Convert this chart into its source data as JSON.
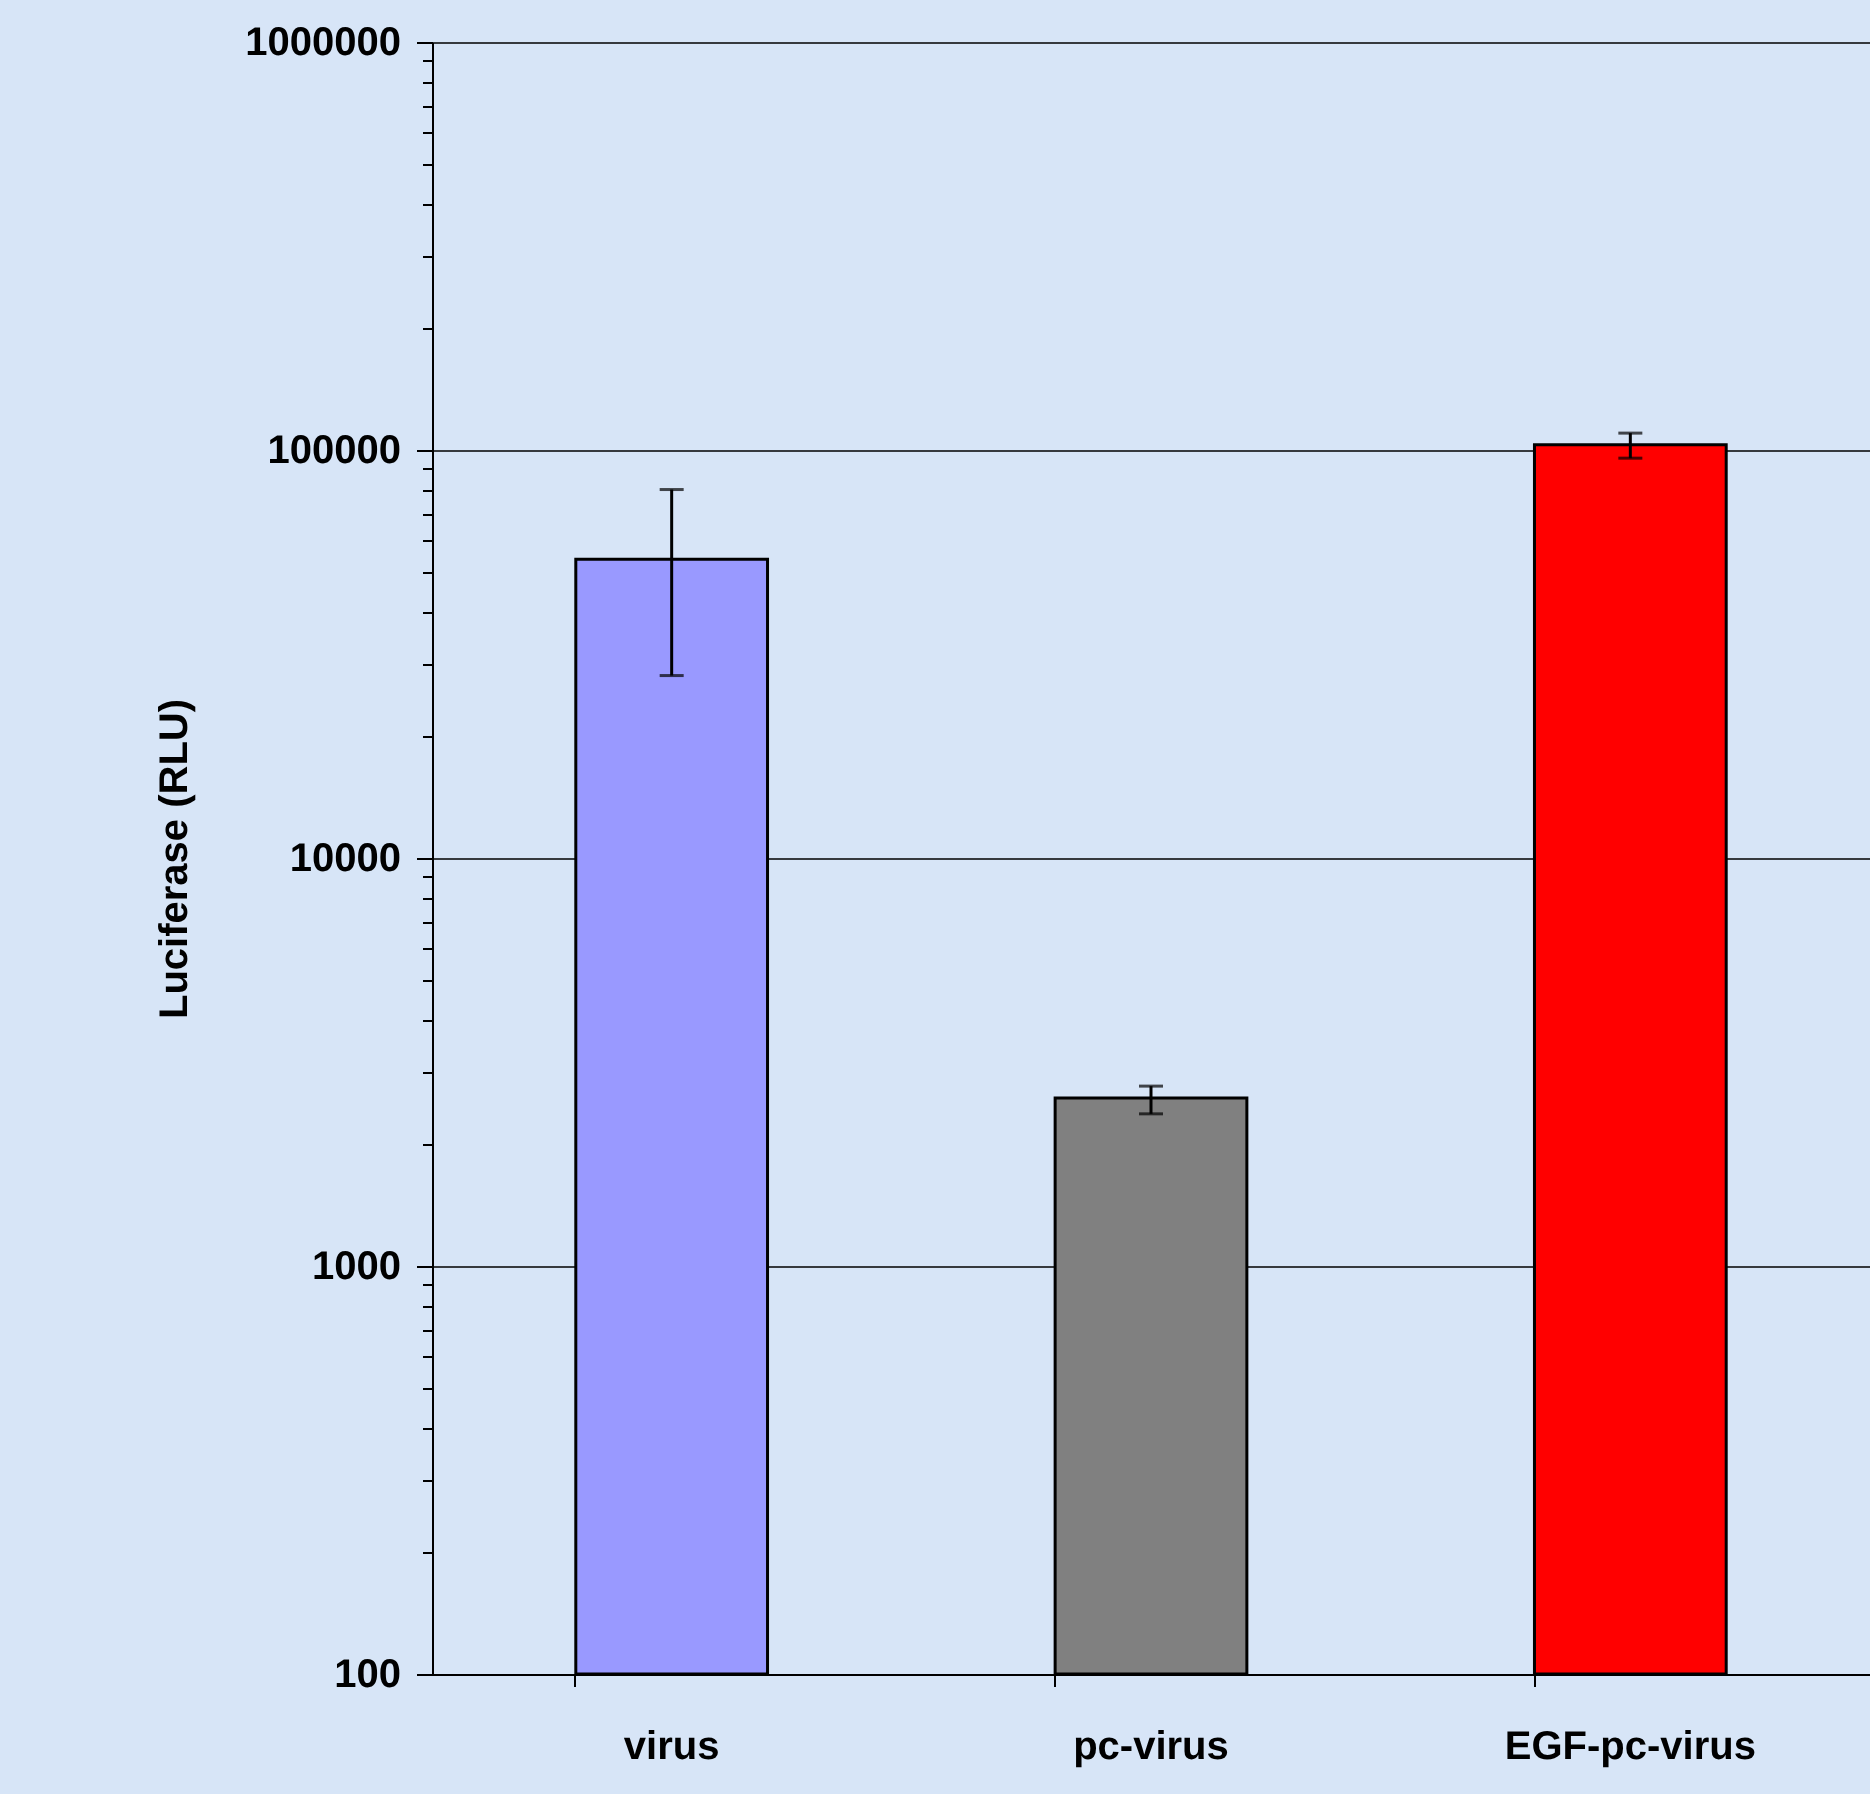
{
  "chart_data": {
    "type": "bar",
    "ylabel": "Luciferase (RLU)",
    "categories": [
      "virus",
      "pc-virus",
      "EGF-pc-virus"
    ],
    "values": [
      54000,
      2580,
      103000
    ],
    "colors": [
      "#9999ff",
      "#808080",
      "#ff0000"
    ],
    "errors": [
      [
        28000,
        80000
      ],
      [
        2360,
        2760
      ],
      [
        95500,
        110000
      ]
    ],
    "log": true,
    "ylim": [
      100,
      1000000
    ],
    "yticks": [
      100,
      {
        "value": 200,
        "label": null
      },
      {
        "value": 300,
        "label": null
      },
      {
        "value": 400,
        "label": null
      },
      {
        "value": 500,
        "label": null
      },
      {
        "value": 600,
        "label": null
      },
      {
        "value": 700,
        "label": null
      },
      {
        "value": 800,
        "label": null
      },
      {
        "value": 900,
        "label": null
      },
      1000,
      {
        "value": 2000,
        "label": null
      },
      {
        "value": 3000,
        "label": null
      },
      {
        "value": 4000,
        "label": null
      },
      {
        "value": 5000,
        "label": null
      },
      {
        "value": 6000,
        "label": null
      },
      {
        "value": 7000,
        "label": null
      },
      {
        "value": 8000,
        "label": null
      },
      {
        "value": 9000,
        "label": null
      },
      10000,
      {
        "value": 20000,
        "label": null
      },
      {
        "value": 30000,
        "label": null
      },
      {
        "value": 40000,
        "label": null
      },
      {
        "value": 50000,
        "label": null
      },
      {
        "value": 60000,
        "label": null
      },
      {
        "value": 70000,
        "label": null
      },
      {
        "value": 80000,
        "label": null
      },
      {
        "value": 90000,
        "label": null
      },
      100000,
      {
        "value": 200000,
        "label": null
      },
      {
        "value": 300000,
        "label": null
      },
      {
        "value": 400000,
        "label": null
      },
      {
        "value": 500000,
        "label": null
      },
      {
        "value": 600000,
        "label": null
      },
      {
        "value": 700000,
        "label": null
      },
      {
        "value": 800000,
        "label": null
      },
      {
        "value": 900000,
        "label": null
      },
      1000000
    ],
    "grid": "y"
  }
}
